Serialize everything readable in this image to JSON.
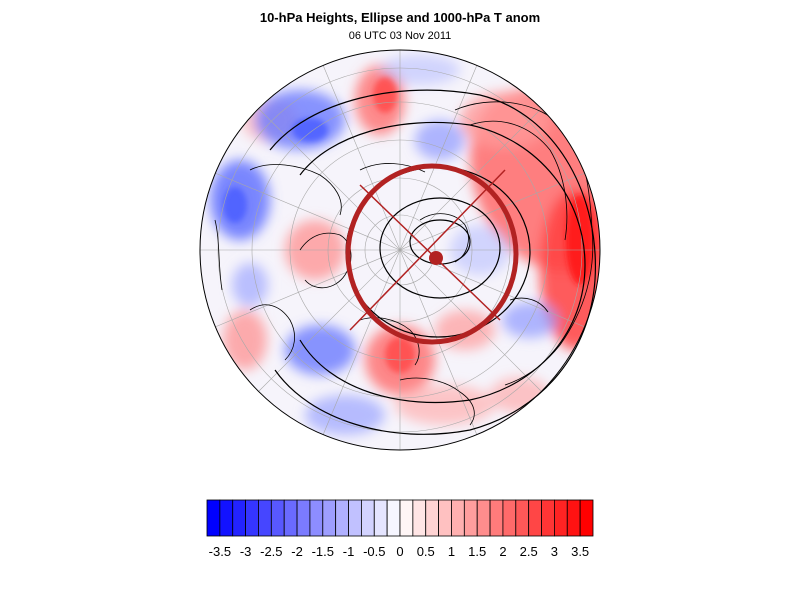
{
  "title": "10-hPa Heights, Ellipse and 1000-hPa T anom",
  "subtitle": "06 UTC 03 Nov 2011",
  "colorbar": {
    "min": -3.75,
    "max": 3.75,
    "step": 0.25,
    "tick_labels": [
      "-3.5",
      "-3",
      "-2.5",
      "-2",
      "-1.5",
      "-1",
      "-0.5",
      "0",
      "0.5",
      "1",
      "1.5",
      "2",
      "2.5",
      "3",
      "3.5"
    ],
    "tick_values": [
      -3.5,
      -3,
      -2.5,
      -2,
      -1.5,
      -1,
      -0.5,
      0,
      0.5,
      1,
      1.5,
      2,
      2.5,
      3,
      3.5
    ],
    "negative_color": "#0000ff",
    "positive_color": "#ff0000",
    "neutral_color": "#ffffff"
  },
  "map": {
    "projection": "polar-orthographic",
    "hemisphere": "north",
    "gridlines": true,
    "coastlines": true,
    "vortex_ellipse_color": "#b22222",
    "height_contour_color": "#000000"
  }
}
